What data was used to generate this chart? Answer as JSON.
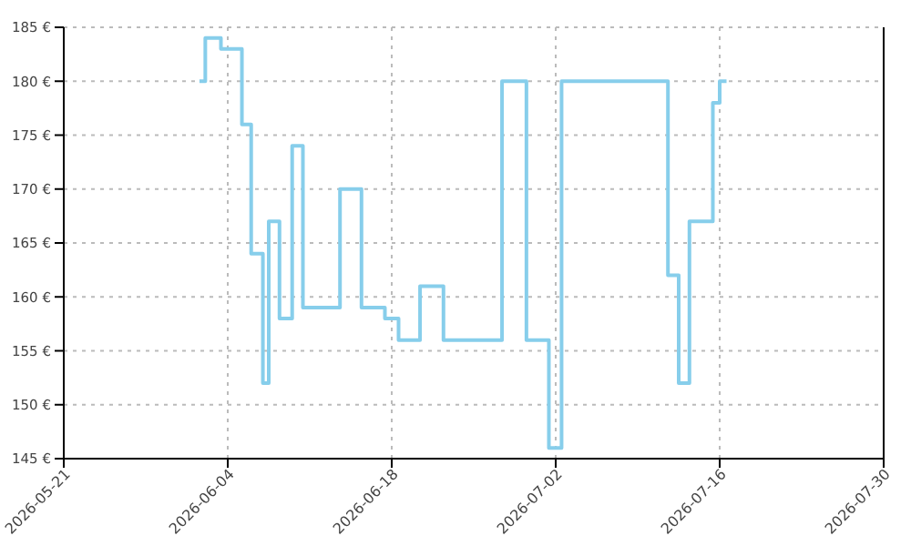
{
  "chart_data": {
    "type": "step",
    "x": [
      "2026-06-01T14:00",
      "2026-06-02T02:00",
      "2026-06-03T10:00",
      "2026-06-05T05:00",
      "2026-06-06T00:00",
      "2026-06-07T00:00",
      "2026-06-07T12:00",
      "2026-06-08T10:00",
      "2026-06-09T12:00",
      "2026-06-10T10:00",
      "2026-06-13T14:00",
      "2026-06-15T10:00",
      "2026-06-17T10:00",
      "2026-06-18T14:00",
      "2026-06-20T10:00",
      "2026-06-22T10:00",
      "2026-06-27T10:00",
      "2026-06-29T12:00",
      "2026-07-01T10:00",
      "2026-07-02T12:00",
      "2026-07-11T14:00",
      "2026-07-12T12:00",
      "2026-07-13T10:00",
      "2026-07-15T10:00",
      "2026-07-16T00:00",
      "2026-07-16T14:00"
    ],
    "series": [
      {
        "color": "#87ceeb",
        "values": [
          180,
          184,
          183,
          176,
          164,
          152,
          167,
          158,
          174,
          159,
          170,
          159,
          158,
          156,
          161,
          156,
          180,
          156,
          146,
          180,
          162,
          152,
          167,
          178,
          180,
          180
        ]
      }
    ],
    "xlim": [
      "2026-05-21",
      "2026-07-30"
    ],
    "xticks": [
      "2026-05-21",
      "2026-06-04",
      "2026-06-18",
      "2026-07-02",
      "2026-07-16",
      "2026-07-30"
    ],
    "ylim": [
      145,
      185
    ],
    "yticks": [
      {
        "value": 145,
        "label": "145 €"
      },
      {
        "value": 150,
        "label": "150 €"
      },
      {
        "value": 155,
        "label": "155 €"
      },
      {
        "value": 160,
        "label": "160 €"
      },
      {
        "value": 165,
        "label": "165 €"
      },
      {
        "value": 170,
        "label": "170 €"
      },
      {
        "value": 175,
        "label": "175 €"
      },
      {
        "value": 180,
        "label": "180 €"
      },
      {
        "value": 185,
        "label": "185 €"
      }
    ],
    "grid": true
  }
}
